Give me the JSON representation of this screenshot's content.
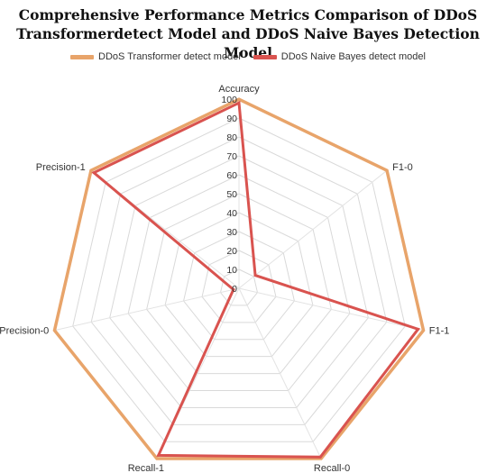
{
  "title_line1": "Comprehensive Performance Metrics Comparison of DDoS",
  "title_line2": "Transformerdetect Model and DDoS Naive Bayes Detection Model",
  "chart_data": {
    "type": "radar",
    "title": "Comprehensive Performance Metrics Comparison of DDoS Transformerdetect Model and DDoS Naive Bayes Detection Model",
    "axes": [
      "Accuracy",
      "F1-0",
      "F1-1",
      "Recall-0",
      "Recall-1",
      "Precision-0",
      "Precision-1"
    ],
    "rlim": [
      0,
      100
    ],
    "rticks": [
      0,
      10,
      20,
      30,
      40,
      50,
      60,
      70,
      80,
      90,
      100
    ],
    "grid": true,
    "legend_position": "top",
    "series": [
      {
        "name": "DDoS Transformer detect model",
        "color": "#e8a46a",
        "values": [
          99.9,
          99.9,
          99.9,
          99.9,
          99.9,
          99.9,
          99.9
        ]
      },
      {
        "name": "DDoS Naive Bayes detect model",
        "color": "#d9534f",
        "values": [
          98,
          11,
          97,
          99,
          98,
          3,
          98
        ]
      }
    ]
  }
}
